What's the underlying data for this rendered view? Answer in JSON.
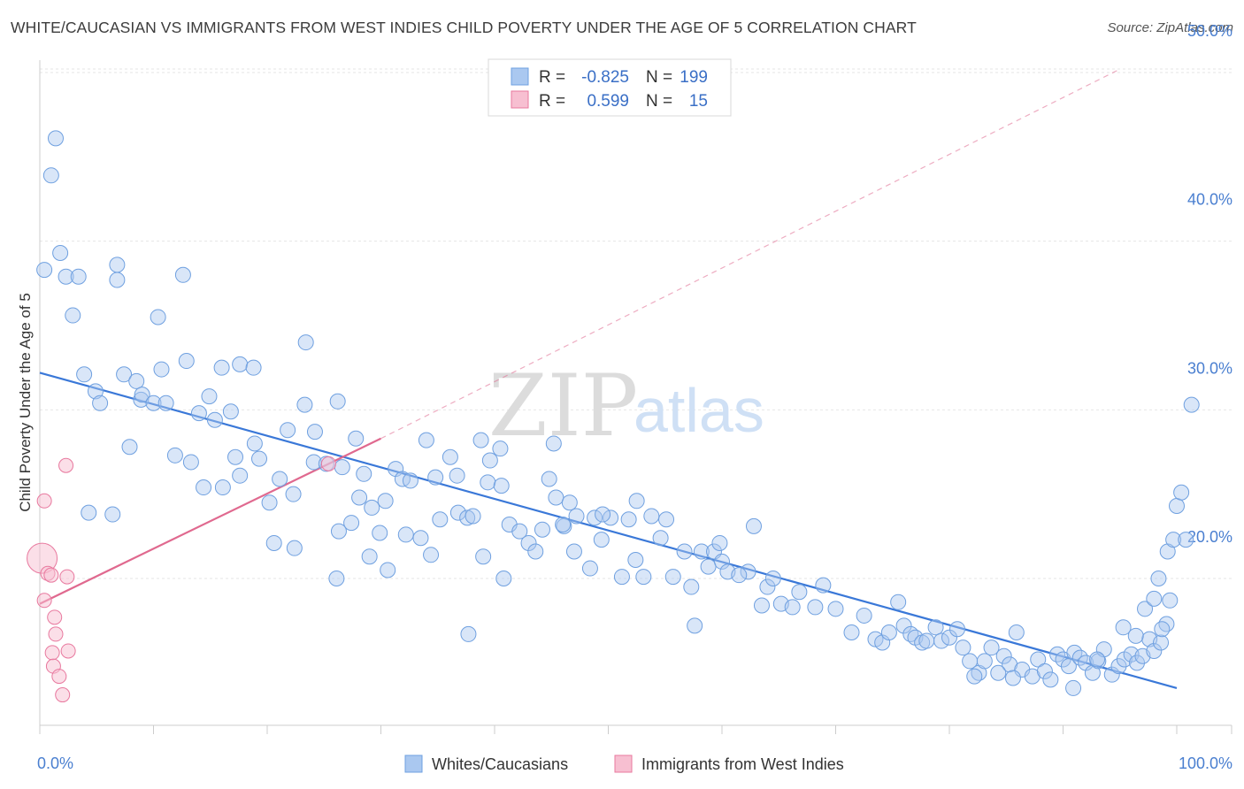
{
  "title": "WHITE/CAUCASIAN VS IMMIGRANTS FROM WEST INDIES CHILD POVERTY UNDER THE AGE OF 5 CORRELATION CHART",
  "source": "Source: ZipAtlas.com",
  "watermark": {
    "zip": "ZIP",
    "atlas": "atlas"
  },
  "colors": {
    "blue": "#6fa0e0",
    "blue_fill": "#aac8f0",
    "blue_line": "#3a78d8",
    "pink": "#e8789e",
    "pink_fill": "#f7bfd1",
    "pink_line": "#e0698f",
    "tick_text": "#4a7fd0"
  },
  "legend": {
    "rows": [
      {
        "r_label": "R =",
        "r_value": "-0.825",
        "n_label": "N =",
        "n_value": "199"
      },
      {
        "r_label": "R =",
        "r_value": "0.599",
        "n_label": "N =",
        "n_value": "15"
      }
    ]
  },
  "chart_data": {
    "type": "scatter",
    "title": "WHITE/CAUCASIAN VS IMMIGRANTS FROM WEST INDIES CHILD POVERTY UNDER THE AGE OF 5 CORRELATION CHART",
    "xlabel": "",
    "ylabel": "Child Poverty Under the Age of 5",
    "xlim": [
      0,
      100
    ],
    "ylim": [
      10,
      52
    ],
    "x_tick_labels": [
      "0.0%",
      "100.0%"
    ],
    "y_ticks": [
      20,
      30,
      40,
      50
    ],
    "y_tick_labels": [
      "20.0%",
      "30.0%",
      "40.0%",
      "50.0%"
    ],
    "grid": true,
    "legend_position": "top-center",
    "series": [
      {
        "name": "Whites/Caucasians",
        "color": "#6fa0e0",
        "trend": {
          "x": [
            0,
            100
          ],
          "y": [
            32.2,
            13.5
          ]
        },
        "points": [
          [
            0.4,
            38.3
          ],
          [
            1.4,
            46.1
          ],
          [
            1.0,
            43.9
          ],
          [
            1.8,
            39.3
          ],
          [
            2.3,
            37.9
          ],
          [
            3.4,
            37.9
          ],
          [
            2.9,
            35.6
          ],
          [
            6.8,
            37.7
          ],
          [
            6.8,
            38.6
          ],
          [
            10.4,
            35.5
          ],
          [
            12.6,
            38.0
          ],
          [
            3.9,
            32.1
          ],
          [
            4.9,
            31.1
          ],
          [
            5.3,
            30.4
          ],
          [
            7.4,
            32.1
          ],
          [
            8.5,
            31.7
          ],
          [
            8.9,
            30.6
          ],
          [
            9.0,
            30.9
          ],
          [
            10.0,
            30.4
          ],
          [
            10.7,
            32.4
          ],
          [
            11.1,
            30.4
          ],
          [
            12.9,
            32.9
          ],
          [
            14.0,
            29.8
          ],
          [
            14.9,
            30.8
          ],
          [
            15.4,
            29.4
          ],
          [
            16.0,
            32.5
          ],
          [
            16.8,
            29.9
          ],
          [
            17.6,
            32.7
          ],
          [
            18.8,
            32.5
          ],
          [
            23.4,
            34.0
          ],
          [
            7.9,
            27.8
          ],
          [
            11.9,
            27.3
          ],
          [
            13.3,
            26.9
          ],
          [
            17.2,
            27.2
          ],
          [
            17.6,
            26.1
          ],
          [
            18.9,
            28.0
          ],
          [
            19.3,
            27.1
          ],
          [
            21.1,
            25.9
          ],
          [
            21.8,
            28.8
          ],
          [
            23.3,
            30.3
          ],
          [
            24.2,
            28.7
          ],
          [
            26.2,
            30.5
          ],
          [
            27.8,
            28.3
          ],
          [
            24.1,
            26.9
          ],
          [
            25.2,
            26.8
          ],
          [
            26.6,
            26.6
          ],
          [
            28.5,
            26.2
          ],
          [
            31.3,
            26.5
          ],
          [
            34.0,
            28.2
          ],
          [
            36.1,
            27.2
          ],
          [
            36.7,
            26.1
          ],
          [
            38.8,
            28.2
          ],
          [
            39.6,
            27.0
          ],
          [
            40.5,
            27.7
          ],
          [
            14.4,
            25.4
          ],
          [
            16.1,
            25.4
          ],
          [
            20.2,
            24.5
          ],
          [
            22.3,
            25.0
          ],
          [
            28.1,
            24.8
          ],
          [
            29.2,
            24.2
          ],
          [
            30.4,
            24.6
          ],
          [
            31.9,
            25.9
          ],
          [
            32.6,
            25.8
          ],
          [
            34.8,
            26.0
          ],
          [
            35.2,
            23.5
          ],
          [
            36.8,
            23.9
          ],
          [
            37.6,
            23.6
          ],
          [
            38.1,
            23.7
          ],
          [
            39.4,
            25.7
          ],
          [
            40.6,
            25.5
          ],
          [
            4.3,
            23.9
          ],
          [
            6.4,
            23.8
          ],
          [
            20.6,
            22.1
          ],
          [
            22.4,
            21.8
          ],
          [
            27.4,
            23.3
          ],
          [
            29.9,
            22.7
          ],
          [
            32.2,
            22.6
          ],
          [
            34.4,
            21.4
          ],
          [
            41.3,
            23.2
          ],
          [
            42.2,
            22.8
          ],
          [
            43.0,
            22.1
          ],
          [
            43.6,
            21.6
          ],
          [
            44.2,
            22.9
          ],
          [
            44.8,
            25.9
          ],
          [
            45.4,
            24.8
          ],
          [
            46.6,
            24.5
          ],
          [
            46.1,
            23.1
          ],
          [
            47.0,
            21.6
          ],
          [
            48.4,
            20.6
          ],
          [
            48.8,
            23.6
          ],
          [
            49.4,
            22.3
          ],
          [
            50.2,
            23.6
          ],
          [
            51.2,
            20.1
          ],
          [
            51.8,
            23.5
          ],
          [
            52.4,
            21.1
          ],
          [
            53.1,
            20.1
          ],
          [
            53.8,
            23.7
          ],
          [
            54.6,
            22.4
          ],
          [
            55.1,
            23.5
          ],
          [
            55.7,
            20.1
          ],
          [
            56.7,
            21.6
          ],
          [
            57.3,
            19.5
          ],
          [
            58.2,
            21.6
          ],
          [
            58.8,
            20.7
          ],
          [
            59.3,
            21.6
          ],
          [
            60.0,
            21.0
          ],
          [
            60.5,
            20.4
          ],
          [
            26.1,
            20.0
          ],
          [
            30.6,
            20.5
          ],
          [
            40.8,
            20.0
          ],
          [
            37.7,
            16.7
          ],
          [
            45.2,
            28.0
          ],
          [
            47.2,
            23.7
          ],
          [
            49.5,
            23.8
          ],
          [
            57.6,
            17.2
          ],
          [
            59.8,
            22.1
          ],
          [
            62.3,
            20.4
          ],
          [
            62.8,
            23.1
          ],
          [
            63.5,
            18.4
          ],
          [
            64.0,
            19.5
          ],
          [
            64.5,
            20.0
          ],
          [
            65.2,
            18.5
          ],
          [
            66.2,
            18.3
          ],
          [
            66.8,
            19.2
          ],
          [
            68.2,
            18.3
          ],
          [
            68.9,
            19.6
          ],
          [
            70.0,
            18.2
          ],
          [
            71.4,
            16.8
          ],
          [
            72.5,
            17.8
          ],
          [
            73.5,
            16.4
          ],
          [
            74.1,
            16.2
          ],
          [
            74.7,
            16.8
          ],
          [
            75.5,
            18.6
          ],
          [
            76.0,
            17.2
          ],
          [
            76.6,
            16.7
          ],
          [
            77.0,
            16.5
          ],
          [
            77.6,
            16.2
          ],
          [
            78.0,
            16.3
          ],
          [
            78.8,
            17.1
          ],
          [
            79.3,
            16.3
          ],
          [
            80.0,
            16.5
          ],
          [
            80.7,
            17.0
          ],
          [
            81.2,
            15.9
          ],
          [
            81.8,
            15.1
          ],
          [
            82.6,
            14.4
          ],
          [
            83.1,
            15.1
          ],
          [
            83.7,
            15.9
          ],
          [
            84.8,
            15.4
          ],
          [
            85.3,
            14.9
          ],
          [
            85.9,
            16.8
          ],
          [
            86.4,
            14.6
          ],
          [
            87.3,
            14.2
          ],
          [
            87.8,
            15.2
          ],
          [
            88.4,
            14.5
          ],
          [
            89.5,
            15.5
          ],
          [
            90.0,
            15.2
          ],
          [
            90.5,
            14.8
          ],
          [
            91.0,
            15.6
          ],
          [
            91.5,
            15.3
          ],
          [
            92.0,
            15.0
          ],
          [
            92.6,
            14.4
          ],
          [
            93.1,
            15.1
          ],
          [
            93.6,
            15.8
          ],
          [
            94.3,
            14.3
          ],
          [
            94.9,
            14.8
          ],
          [
            95.4,
            15.2
          ],
          [
            96.0,
            15.5
          ],
          [
            96.5,
            15.0
          ],
          [
            97.0,
            15.4
          ],
          [
            97.6,
            16.4
          ],
          [
            98.0,
            15.7
          ],
          [
            98.6,
            16.2
          ],
          [
            99.1,
            17.3
          ],
          [
            82.2,
            14.2
          ],
          [
            84.3,
            14.4
          ],
          [
            85.6,
            14.1
          ],
          [
            88.9,
            14.0
          ],
          [
            90.9,
            13.5
          ],
          [
            95.3,
            17.1
          ],
          [
            96.4,
            16.6
          ],
          [
            97.2,
            18.2
          ],
          [
            98.0,
            18.8
          ],
          [
            98.4,
            20.0
          ],
          [
            99.2,
            21.6
          ],
          [
            99.7,
            22.3
          ],
          [
            100.0,
            24.3
          ],
          [
            100.4,
            25.1
          ],
          [
            101.3,
            30.3
          ],
          [
            100.8,
            22.3
          ],
          [
            99.4,
            18.7
          ],
          [
            98.7,
            17.0
          ],
          [
            93.0,
            15.2
          ],
          [
            26.3,
            22.8
          ],
          [
            29.0,
            21.3
          ],
          [
            33.5,
            22.4
          ],
          [
            39.0,
            21.3
          ],
          [
            46.0,
            23.2
          ],
          [
            52.5,
            24.6
          ],
          [
            61.5,
            20.2
          ]
        ]
      },
      {
        "name": "Immigrants from West Indies",
        "color": "#e8789e",
        "trend": {
          "x": [
            0,
            30
          ],
          "y": [
            18.5,
            28.3
          ],
          "extended": {
            "x": [
              30,
              95
            ],
            "y": [
              28.3,
              50.2
            ]
          }
        },
        "points": [
          [
            0.2,
            21.2
          ],
          [
            0.4,
            24.6
          ],
          [
            0.4,
            18.7
          ],
          [
            0.7,
            20.3
          ],
          [
            1.0,
            20.2
          ],
          [
            1.1,
            15.6
          ],
          [
            1.2,
            14.8
          ],
          [
            1.3,
            17.7
          ],
          [
            1.4,
            16.7
          ],
          [
            1.7,
            14.2
          ],
          [
            2.0,
            13.1
          ],
          [
            2.3,
            26.7
          ],
          [
            2.4,
            20.1
          ],
          [
            2.5,
            15.7
          ],
          [
            25.4,
            26.8
          ]
        ]
      }
    ]
  },
  "bottom_legend": [
    {
      "label": "Whites/Caucasians"
    },
    {
      "label": "Immigrants from West Indies"
    }
  ]
}
